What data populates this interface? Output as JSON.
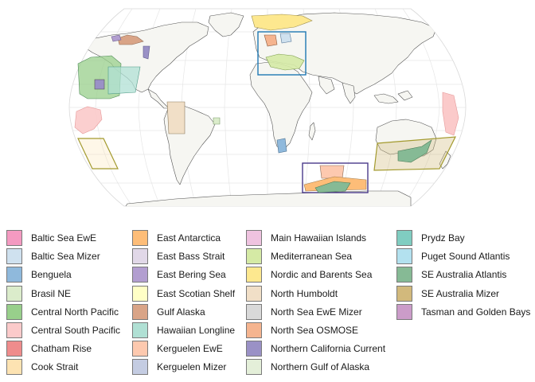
{
  "map": {
    "projection": "robinson",
    "ocean_color": "#ffffff",
    "land_color": "#f6f6f2",
    "graticule_color": "#e6e6e6"
  },
  "legend": {
    "items": [
      {
        "label": "Baltic Sea EwE",
        "color": "#f49ac1"
      },
      {
        "label": "Baltic Sea Mizer",
        "color": "#cfe1ef"
      },
      {
        "label": "Benguela",
        "color": "#8fb9dc"
      },
      {
        "label": "Brasil NE",
        "color": "#dbeccb"
      },
      {
        "label": "Central North Pacific",
        "color": "#98cf8b"
      },
      {
        "label": "Central South Pacific",
        "color": "#fbcaca"
      },
      {
        "label": "Chatham Rise",
        "color": "#ef8c8c"
      },
      {
        "label": "Cook Strait",
        "color": "#fde3b2"
      },
      {
        "label": "East Antarctica",
        "color": "#fdbd78"
      },
      {
        "label": "East Bass Strait",
        "color": "#e1d8e8"
      },
      {
        "label": "East Bering Sea",
        "color": "#b29ed0"
      },
      {
        "label": "East Scotian Shelf",
        "color": "#ffffc6"
      },
      {
        "label": "Gulf Alaska",
        "color": "#d9a487"
      },
      {
        "label": "Hawaiian Longline",
        "color": "#b0e0d4"
      },
      {
        "label": "Kerguelen EwE",
        "color": "#fdc9af"
      },
      {
        "label": "Kerguelen Mizer",
        "color": "#c4cce2"
      },
      {
        "label": "Main Hawaiian Islands",
        "color": "#efc3e0"
      },
      {
        "label": "Mediterranean Sea",
        "color": "#d5eaa5"
      },
      {
        "label": "Nordic and Barents Sea",
        "color": "#fde88f"
      },
      {
        "label": "North Humboldt",
        "color": "#f1dfc7"
      },
      {
        "label": "North Sea EwE Mizer",
        "color": "#d9d9d9"
      },
      {
        "label": "North Sea OSMOSE",
        "color": "#f5b48f"
      },
      {
        "label": "Northern California Current",
        "color": "#9a91c6"
      },
      {
        "label": "Northern Gulf of Alaska",
        "color": "#e4efd9"
      },
      {
        "label": "Prydz Bay",
        "color": "#80cdc1"
      },
      {
        "label": "Puget Sound Atlantis",
        "color": "#b3e1ef"
      },
      {
        "label": "SE Australia Atlantis",
        "color": "#86ba95"
      },
      {
        "label": "SE Australia Mizer",
        "color": "#d2b97c"
      },
      {
        "label": "Tasman and Golden Bays",
        "color": "#cb9cc9"
      }
    ]
  }
}
